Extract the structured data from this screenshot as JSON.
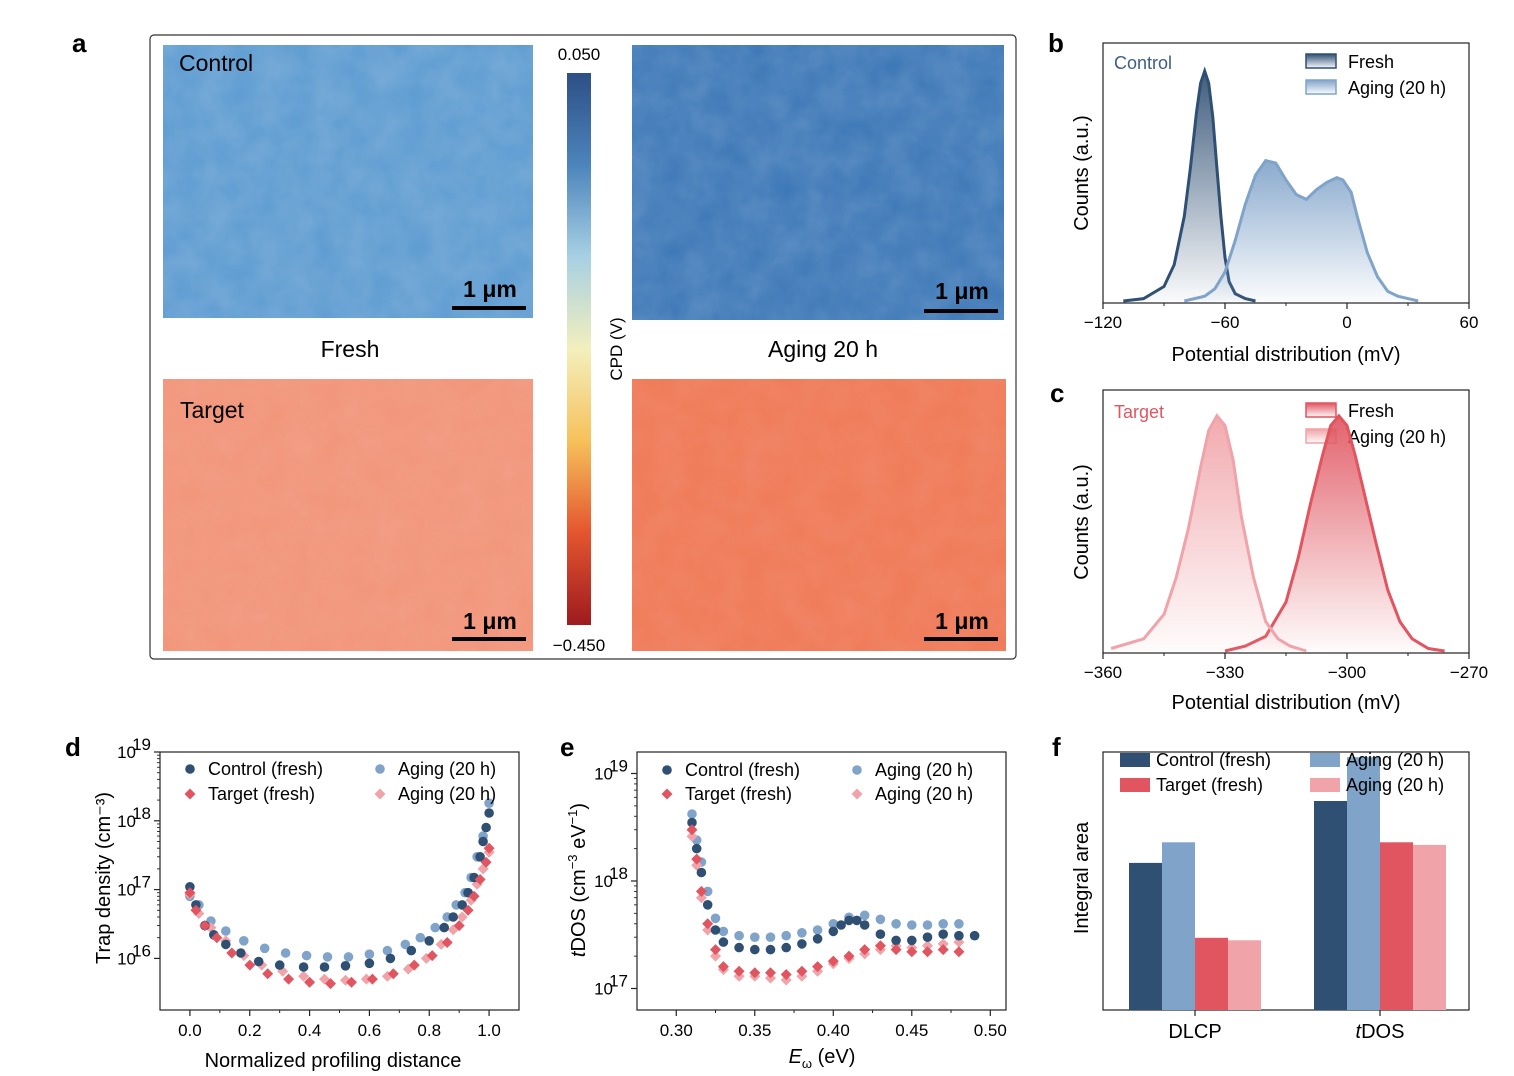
{
  "panels": {
    "a": "a",
    "b": "b",
    "c": "c",
    "d": "d",
    "e": "e",
    "f": "f"
  },
  "colors": {
    "control_fresh": "#2f4f73",
    "control_aging": "#80a3c9",
    "target_fresh": "#e05560",
    "target_aging": "#f0a3a8",
    "control_label": "#3b5f8a",
    "target_label": "#e05560"
  },
  "map": {
    "tiles": [
      {
        "row": "Control",
        "condition": "Fresh",
        "scale": "1 μm",
        "color": "#5b9ad0"
      },
      {
        "row": "Control",
        "condition": "Aging 20 h",
        "scale": "1 μm",
        "color": "#3a76b6"
      },
      {
        "row": "Target",
        "condition": "Fresh",
        "scale": "1 μm",
        "color": "#f2957a"
      },
      {
        "row": "Target",
        "condition": "Aging 20 h",
        "scale": "1 μm",
        "color": "#ef7a58"
      }
    ],
    "row_labels": {
      "top": "Control",
      "bottom": "Target"
    },
    "col_labels": {
      "left": "Fresh",
      "right": "Aging 20 h"
    },
    "scale_label": "1 μm",
    "colorbar": {
      "label": "CPD (V)",
      "max": "0.050",
      "min": "−0.450",
      "stops": [
        "#2d4f86",
        "#4c85bb",
        "#a7d0e4",
        "#f3efbd",
        "#f6c15b",
        "#e4552f",
        "#9e1b1e"
      ]
    }
  },
  "chart_data": [
    {
      "panel": "b",
      "type": "area",
      "label": "Control",
      "xlabel": "Potential distribution (mV)",
      "ylabel": "Counts (a.u.)",
      "xlim": [
        -120,
        60
      ],
      "xticks": [
        -120,
        -60,
        0,
        60
      ],
      "xtick_labels": [
        "−120",
        "−60",
        "0",
        "60"
      ],
      "series": [
        {
          "name": "Fresh",
          "x": [
            -110,
            -100,
            -90,
            -85,
            -80,
            -77,
            -74,
            -72,
            -70,
            -68,
            -66,
            -64,
            -62,
            -60,
            -58,
            -55,
            -50,
            -45
          ],
          "y": [
            0,
            0.01,
            0.06,
            0.15,
            0.35,
            0.55,
            0.78,
            0.9,
            0.95,
            0.9,
            0.76,
            0.55,
            0.35,
            0.18,
            0.08,
            0.03,
            0.01,
            0
          ]
        },
        {
          "name": "Aging (20 h)",
          "x": [
            -80,
            -70,
            -65,
            -60,
            -55,
            -50,
            -45,
            -40,
            -35,
            -30,
            -25,
            -20,
            -15,
            -10,
            -5,
            -2,
            2,
            5,
            10,
            15,
            20,
            25,
            30,
            35
          ],
          "y": [
            0,
            0.02,
            0.05,
            0.12,
            0.25,
            0.4,
            0.52,
            0.58,
            0.57,
            0.5,
            0.44,
            0.42,
            0.46,
            0.49,
            0.51,
            0.5,
            0.45,
            0.35,
            0.2,
            0.1,
            0.04,
            0.02,
            0.01,
            0
          ]
        }
      ],
      "legend": [
        "Fresh",
        "Aging (20 h)"
      ]
    },
    {
      "panel": "c",
      "type": "area",
      "label": "Target",
      "xlabel": "Potential distribution (mV)",
      "ylabel": "Counts (a.u.)",
      "xlim": [
        -360,
        -270
      ],
      "xticks": [
        -360,
        -330,
        -300,
        -270
      ],
      "xtick_labels": [
        "−360",
        "−330",
        "−300",
        "−270"
      ],
      "series": [
        {
          "name": "Fresh",
          "x": [
            -330,
            -325,
            -320,
            -315,
            -312,
            -309,
            -306,
            -304,
            -302,
            -300,
            -298,
            -296,
            -293,
            -290,
            -287,
            -284,
            -280,
            -276
          ],
          "y": [
            0,
            0.02,
            0.06,
            0.2,
            0.38,
            0.6,
            0.8,
            0.92,
            0.96,
            0.92,
            0.8,
            0.66,
            0.45,
            0.25,
            0.12,
            0.05,
            0.01,
            0
          ]
        },
        {
          "name": "Aging (20 h)",
          "x": [
            -358,
            -350,
            -345,
            -342,
            -339,
            -336,
            -334,
            -332,
            -330,
            -328,
            -326,
            -323,
            -320,
            -317,
            -314,
            -310
          ],
          "y": [
            0.01,
            0.05,
            0.15,
            0.3,
            0.5,
            0.75,
            0.9,
            0.96,
            0.92,
            0.78,
            0.55,
            0.3,
            0.12,
            0.05,
            0.02,
            0
          ]
        }
      ],
      "legend": [
        "Fresh",
        "Aging (20 h)"
      ]
    },
    {
      "panel": "d",
      "type": "scatter",
      "xlabel": "Normalized profiling distance",
      "ylabel": "Trap density (cm⁻³)",
      "xlim": [
        -0.1,
        1.1
      ],
      "ylog": true,
      "ylim_exp": [
        15.25,
        19
      ],
      "xticks": [
        0,
        0.2,
        0.4,
        0.6,
        0.8,
        1.0
      ],
      "xtick_labels": [
        "0.0",
        "0.2",
        "0.4",
        "0.6",
        "0.8",
        "1.0"
      ],
      "yticks_exp": [
        16,
        17,
        18,
        19
      ],
      "ytick_labels": [
        "10",
        "10",
        "10",
        "10"
      ],
      "ytick_sup": [
        "16",
        "17",
        "18",
        "19"
      ],
      "series": [
        {
          "name": "Control (fresh)",
          "marker": "circle",
          "x": [
            0,
            0.02,
            0.05,
            0.08,
            0.12,
            0.17,
            0.23,
            0.3,
            0.38,
            0.45,
            0.52,
            0.6,
            0.67,
            0.74,
            0.8,
            0.85,
            0.88,
            0.91,
            0.93,
            0.95,
            0.97,
            0.98,
            0.99,
            1.0
          ],
          "y": [
            1.1e+17,
            6e+16,
            3e+16,
            2.2e+16,
            1.6e+16,
            1.2e+16,
            9000000000000000.0,
            8000000000000000.0,
            7500000000000000.0,
            7500000000000000.0,
            7800000000000000.0,
            8500000000000000.0,
            1e+16,
            1.3e+16,
            1.8e+16,
            2.8e+16,
            4e+16,
            6e+16,
            9e+16,
            1.5e+17,
            3e+17,
            5e+17,
            8e+17,
            1.3e+18
          ]
        },
        {
          "name": "Target  (fresh)",
          "marker": "diamond",
          "x": [
            0,
            0.02,
            0.05,
            0.09,
            0.14,
            0.2,
            0.26,
            0.33,
            0.4,
            0.47,
            0.54,
            0.61,
            0.68,
            0.75,
            0.81,
            0.86,
            0.9,
            0.93,
            0.95,
            0.97,
            0.99,
            1.0
          ],
          "y": [
            9e+16,
            5e+16,
            3e+16,
            2e+16,
            1.2e+16,
            8000000000000000.0,
            6000000000000000.0,
            5000000000000000.0,
            4500000000000000.0,
            4300000000000000.0,
            4500000000000000.0,
            5000000000000000.0,
            6000000000000000.0,
            8000000000000000.0,
            1.1e+16,
            1.7e+16,
            3e+16,
            5e+16,
            8e+16,
            1.4e+17,
            2.5e+17,
            4e+17
          ]
        },
        {
          "name": "Aging (20 h)",
          "marker": "circle",
          "x": [
            0,
            0.03,
            0.07,
            0.12,
            0.18,
            0.25,
            0.32,
            0.39,
            0.46,
            0.53,
            0.6,
            0.66,
            0.72,
            0.77,
            0.82,
            0.86,
            0.89,
            0.92,
            0.94,
            0.96,
            0.98,
            1.0
          ],
          "y": [
            8e+16,
            6e+16,
            3.5e+16,
            2.5e+16,
            1.8e+16,
            1.4e+16,
            1.2e+16,
            1.1e+16,
            1.05e+16,
            1.05e+16,
            1.15e+16,
            1.3e+16,
            1.6e+16,
            2e+16,
            2.8e+16,
            4e+16,
            6e+16,
            9e+16,
            1.5e+17,
            3e+17,
            6e+17,
            1.8e+18
          ]
        },
        {
          "name": "Aging (20 h)",
          "marker": "diamond",
          "x": [
            0,
            0.03,
            0.07,
            0.12,
            0.18,
            0.24,
            0.31,
            0.38,
            0.45,
            0.52,
            0.59,
            0.66,
            0.73,
            0.79,
            0.84,
            0.88,
            0.91,
            0.94,
            0.96,
            0.98,
            1.0
          ],
          "y": [
            8.5e+16,
            4.5e+16,
            2.8e+16,
            1.8e+16,
            1.1e+16,
            8000000000000000.0,
            6500000000000000.0,
            5500000000000000.0,
            5000000000000000.0,
            4800000000000000.0,
            5000000000000000.0,
            5500000000000000.0,
            7000000000000000.0,
            1e+16,
            1.6e+16,
            2.6e+16,
            4e+16,
            7e+16,
            1.2e+17,
            2e+17,
            3.5e+17
          ]
        }
      ]
    },
    {
      "panel": "e",
      "type": "scatter",
      "xlabel": "E",
      "xlabel_sub": "ω",
      "xlabel_unit": " (eV)",
      "ylabel": "tDOS (cm⁻³ eV⁻¹)",
      "xlim": [
        0.275,
        0.51
      ],
      "ylog": true,
      "ylim_exp": [
        16.8,
        19.2
      ],
      "xticks": [
        0.3,
        0.35,
        0.4,
        0.45,
        0.5
      ],
      "xtick_labels": [
        "0.30",
        "0.35",
        "0.40",
        "0.45",
        "0.50"
      ],
      "yticks_exp": [
        17,
        18,
        19
      ],
      "ytick_labels": [
        "10",
        "10",
        "10"
      ],
      "ytick_sup": [
        "17",
        "18",
        "19"
      ],
      "series": [
        {
          "name": "Control (fresh)",
          "marker": "circle",
          "x": [
            0.31,
            0.313,
            0.316,
            0.32,
            0.325,
            0.33,
            0.34,
            0.35,
            0.36,
            0.37,
            0.38,
            0.39,
            0.4,
            0.405,
            0.41,
            0.415,
            0.42,
            0.43,
            0.44,
            0.45,
            0.46,
            0.47,
            0.48,
            0.49
          ],
          "y": [
            3.5e+18,
            2e+18,
            1.2e+18,
            6e+17,
            3.5e+17,
            2.7e+17,
            2.4e+17,
            2.3e+17,
            2.3e+17,
            2.4e+17,
            2.6e+17,
            2.9e+17,
            3.4e+17,
            3.9e+17,
            4.3e+17,
            4.3e+17,
            3.9e+17,
            3.2e+17,
            2.8e+17,
            2.8e+17,
            3e+17,
            3.2e+17,
            3.1e+17,
            3.1e+17
          ]
        },
        {
          "name": "Target  (fresh)",
          "marker": "diamond",
          "x": [
            0.31,
            0.313,
            0.316,
            0.32,
            0.325,
            0.33,
            0.34,
            0.35,
            0.36,
            0.37,
            0.38,
            0.39,
            0.4,
            0.41,
            0.42,
            0.43,
            0.44,
            0.45,
            0.46,
            0.47,
            0.48
          ],
          "y": [
            3e+18,
            1.6e+18,
            8e+17,
            4e+17,
            2.3e+17,
            1.6e+17,
            1.45e+17,
            1.4e+17,
            1.4e+17,
            1.35e+17,
            1.45e+17,
            1.6e+17,
            1.8e+17,
            2e+17,
            2.3e+17,
            2.5e+17,
            2.3e+17,
            2.2e+17,
            2.2e+17,
            2.3e+17,
            2.2e+17
          ]
        },
        {
          "name": "Aging (20 h)",
          "marker": "circle",
          "x": [
            0.31,
            0.313,
            0.316,
            0.32,
            0.325,
            0.33,
            0.34,
            0.35,
            0.36,
            0.37,
            0.38,
            0.39,
            0.4,
            0.41,
            0.42,
            0.43,
            0.44,
            0.45,
            0.46,
            0.47,
            0.48
          ],
          "y": [
            4.2e+18,
            2.4e+18,
            1.5e+18,
            8e+17,
            4.5e+17,
            3.4e+17,
            3.1e+17,
            3e+17,
            3e+17,
            3.1e+17,
            3.3e+17,
            3.5e+17,
            4e+17,
            4.6e+17,
            4.8e+17,
            4.4e+17,
            4e+17,
            3.9e+17,
            3.9e+17,
            4e+17,
            4e+17
          ]
        },
        {
          "name": "Aging (20 h)",
          "marker": "diamond",
          "x": [
            0.31,
            0.313,
            0.316,
            0.32,
            0.325,
            0.33,
            0.34,
            0.35,
            0.36,
            0.37,
            0.38,
            0.39,
            0.4,
            0.41,
            0.42,
            0.43,
            0.44,
            0.45,
            0.46,
            0.47,
            0.48
          ],
          "y": [
            2.6e+18,
            1.4e+18,
            7e+17,
            3.5e+17,
            2e+17,
            1.5e+17,
            1.3e+17,
            1.3e+17,
            1.25e+17,
            1.2e+17,
            1.3e+17,
            1.45e+17,
            1.7e+17,
            1.9e+17,
            2.1e+17,
            2.3e+17,
            2.5e+17,
            2.4e+17,
            2.5e+17,
            2.6e+17,
            2.7e+17
          ]
        }
      ]
    },
    {
      "panel": "f",
      "type": "bar",
      "ylabel": "Integral area",
      "categories": [
        "DLCP",
        "tDOS"
      ],
      "category_parts": [
        {
          "italic": "",
          "rest": "DLCP"
        },
        {
          "italic": "t",
          "rest": "DOS"
        }
      ],
      "ylim": [
        0,
        1
      ],
      "series": [
        {
          "name": "Control (fresh)",
          "values": [
            0.57,
            0.81
          ]
        },
        {
          "name": "Aging (20 h)",
          "values": [
            0.65,
            0.98
          ]
        },
        {
          "name": "Target  (fresh)",
          "values": [
            0.28,
            0.65
          ]
        },
        {
          "name": "Aging (20 h)",
          "values": [
            0.27,
            0.64
          ]
        }
      ]
    }
  ]
}
